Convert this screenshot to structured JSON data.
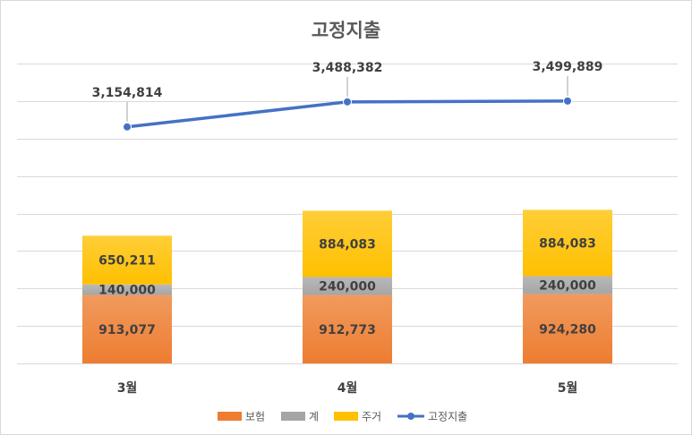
{
  "chart_data": {
    "type": "bar",
    "stacked": true,
    "title": "고정지출",
    "xlabel": "",
    "ylabel": "",
    "grid": true,
    "legend_position": "bottom",
    "categories": [
      "3월",
      "4월",
      "5월"
    ],
    "series": [
      {
        "name": "보험",
        "kind": "bar",
        "color": "#ed7d31",
        "values": [
          913077,
          912773,
          924280
        ],
        "labels": [
          "913,077",
          "912,773",
          "924,280"
        ]
      },
      {
        "name": "계",
        "kind": "bar",
        "color": "#a5a5a5",
        "values": [
          140000,
          240000,
          240000
        ],
        "labels": [
          "140,000",
          "240,000",
          "240,000"
        ]
      },
      {
        "name": "주거",
        "kind": "bar",
        "color": "#ffc000",
        "values": [
          650211,
          884083,
          884083
        ],
        "labels": [
          "650,211",
          "884,083",
          "884,083"
        ]
      },
      {
        "name": "고정지출",
        "kind": "line",
        "color": "#4472c4",
        "values": [
          3154814,
          3488382,
          3499889
        ],
        "labels": [
          "3,154,814",
          "3,488,382",
          "3,499,889"
        ]
      }
    ],
    "ylim": [
      0,
      4000000
    ]
  }
}
